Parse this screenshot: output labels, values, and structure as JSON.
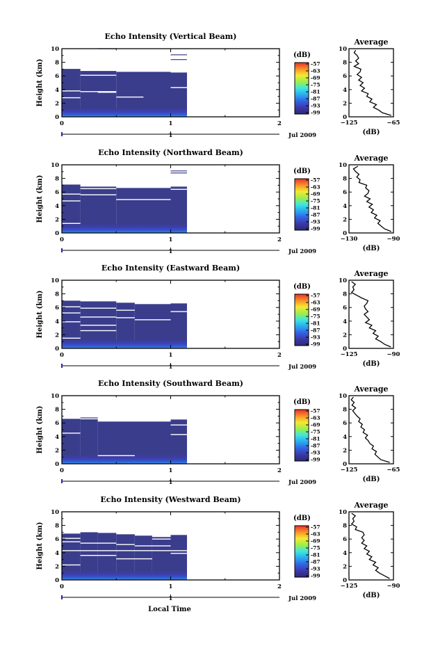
{
  "figure": {
    "xlabel": "Local Time",
    "date_label": "Jul 2009"
  },
  "chart_data": [
    {
      "type": "heatmap",
      "title": "Echo Intensity (Vertical Beam)",
      "ylabel": "Height (km)",
      "xlim": [
        0,
        2
      ],
      "ylim": [
        0,
        10
      ],
      "x_ticks": [
        0,
        1,
        2
      ],
      "y_ticks": [
        0,
        2,
        4,
        6,
        8,
        10
      ],
      "date_axis_ticks": [
        "1"
      ],
      "date_label": "Jul 2009",
      "data_extent_x": [
        0,
        1.15
      ],
      "column_breaks": [
        0,
        0.17,
        0.5,
        1.0,
        1.15
      ],
      "column_tops": [
        7.1,
        6.8,
        6.6,
        6.5
      ],
      "colorbar": {
        "label": "(dB)",
        "ticks": [
          -57,
          -63,
          -69,
          -75,
          -81,
          -87,
          -93,
          -99
        ]
      },
      "gaps": [
        {
          "x": [
            0,
            0.17
          ],
          "y": 7.1
        },
        {
          "x": [
            0.17,
            0.5
          ],
          "y": 6.8
        },
        {
          "x": [
            0,
            0.17
          ],
          "y": 3.8
        },
        {
          "x": [
            0.17,
            0.5
          ],
          "y": 3.7
        },
        {
          "x": [
            0.33,
            0.5
          ],
          "y": 3.6
        },
        {
          "x": [
            0.5,
            0.75
          ],
          "y": 2.9
        },
        {
          "x": [
            1.0,
            1.15
          ],
          "y": 4.3
        },
        {
          "x": [
            0,
            0.17
          ],
          "y": 2.8
        },
        {
          "x": [
            0.17,
            0.5
          ],
          "y": 6.1
        }
      ],
      "upper_echoes": [
        {
          "x": [
            1.0,
            1.15
          ],
          "y": 9.1
        },
        {
          "x": [
            1.0,
            1.15
          ],
          "y": 8.4
        },
        {
          "x": [
            0.33,
            0.5
          ],
          "y": 10.0
        }
      ],
      "profile": {
        "title": "Average",
        "xlabel": "(dB)",
        "xlim": [
          -125,
          -65
        ],
        "x_ticks": [
          -125,
          -65
        ],
        "ylim": [
          0,
          10
        ],
        "y_ticks": [
          0,
          2,
          4,
          6,
          8,
          10
        ],
        "h": [
          0.2,
          0.6,
          1.0,
          1.4,
          1.8,
          2.2,
          2.6,
          3.0,
          3.4,
          3.8,
          4.2,
          4.6,
          5.0,
          5.4,
          5.8,
          6.2,
          6.6,
          7.0,
          7.4,
          7.8,
          8.2,
          8.6,
          9.0,
          9.4,
          9.8
        ],
        "db": [
          -68,
          -80,
          -85,
          -92,
          -88,
          -97,
          -94,
          -101,
          -99,
          -108,
          -104,
          -110,
          -106,
          -112,
          -108,
          -114,
          -110,
          -109,
          -118,
          -112,
          -116,
          -112,
          -114,
          -118,
          -116
        ]
      }
    },
    {
      "type": "heatmap",
      "title": "Echo Intensity (Northward Beam)",
      "ylabel": "Height (km)",
      "xlim": [
        0,
        2
      ],
      "ylim": [
        0,
        10
      ],
      "x_ticks": [
        0,
        1,
        2
      ],
      "y_ticks": [
        0,
        2,
        4,
        6,
        8,
        10
      ],
      "date_axis_ticks": [
        "1"
      ],
      "date_label": "Jul 2009",
      "data_extent_x": [
        0,
        1.15
      ],
      "column_breaks": [
        0,
        0.17,
        0.5,
        1.0,
        1.15
      ],
      "column_tops": [
        7.1,
        6.8,
        6.6,
        6.8
      ],
      "colorbar": {
        "label": "(dB)",
        "ticks": [
          -57,
          -63,
          -69,
          -75,
          -81,
          -87,
          -93,
          -99
        ]
      },
      "gaps": [
        {
          "x": [
            0,
            0.17
          ],
          "y": 5.7
        },
        {
          "x": [
            0.17,
            0.5
          ],
          "y": 5.6
        },
        {
          "x": [
            0,
            0.17
          ],
          "y": 4.7
        },
        {
          "x": [
            0.5,
            1.0
          ],
          "y": 4.9
        },
        {
          "x": [
            0.17,
            0.5
          ],
          "y": 6.5
        },
        {
          "x": [
            1.0,
            1.15
          ],
          "y": 6.4
        },
        {
          "x": [
            0,
            0.17
          ],
          "y": 1.4
        }
      ],
      "upper_echoes": [
        {
          "x": [
            1.0,
            1.15
          ],
          "y": 9.1
        },
        {
          "x": [
            1.0,
            1.15
          ],
          "y": 8.8
        }
      ],
      "profile": {
        "title": "Average",
        "xlabel": "(dB)",
        "xlim": [
          -130,
          -90
        ],
        "x_ticks": [
          -130,
          -90
        ],
        "ylim": [
          0,
          10
        ],
        "y_ticks": [
          0,
          2,
          4,
          6,
          8,
          10
        ],
        "h": [
          0.2,
          0.6,
          1.0,
          1.4,
          1.8,
          2.2,
          2.6,
          3.0,
          3.4,
          3.8,
          4.2,
          4.6,
          5.0,
          5.4,
          5.8,
          6.2,
          6.6,
          7.0,
          7.4,
          7.8,
          8.2,
          8.6,
          9.0,
          9.4,
          9.8
        ],
        "db": [
          -92,
          -98,
          -101,
          -104,
          -102,
          -107,
          -105,
          -110,
          -108,
          -112,
          -109,
          -114,
          -111,
          -116,
          -113,
          -112,
          -115,
          -114,
          -121,
          -120,
          -123,
          -121,
          -124,
          -126,
          -122
        ]
      }
    },
    {
      "type": "heatmap",
      "title": "Echo Intensity (Eastward Beam)",
      "ylabel": "Height (km)",
      "xlim": [
        0,
        2
      ],
      "ylim": [
        0,
        10
      ],
      "x_ticks": [
        0,
        1,
        2
      ],
      "y_ticks": [
        0,
        2,
        4,
        6,
        8,
        10
      ],
      "date_axis_ticks": [
        "1"
      ],
      "date_label": "Jul 2009",
      "data_extent_x": [
        0,
        1.15
      ],
      "column_breaks": [
        0,
        0.17,
        0.5,
        0.67,
        1.0,
        1.15
      ],
      "column_tops": [
        7.0,
        6.9,
        6.7,
        6.5,
        6.6
      ],
      "colorbar": {
        "label": "(dB)",
        "ticks": [
          -57,
          -63,
          -69,
          -75,
          -81,
          -87,
          -93,
          -99
        ]
      },
      "gaps": [
        {
          "x": [
            0,
            0.17
          ],
          "y": 6.1
        },
        {
          "x": [
            0.17,
            0.5
          ],
          "y": 5.9
        },
        {
          "x": [
            0,
            0.17
          ],
          "y": 5.2
        },
        {
          "x": [
            0.5,
            0.67
          ],
          "y": 5.6
        },
        {
          "x": [
            0.17,
            0.5
          ],
          "y": 4.6
        },
        {
          "x": [
            0.67,
            1.0
          ],
          "y": 4.2
        },
        {
          "x": [
            0.17,
            0.5
          ],
          "y": 3.4
        },
        {
          "x": [
            0,
            0.17
          ],
          "y": 3.9
        },
        {
          "x": [
            0.17,
            0.5
          ],
          "y": 2.6
        },
        {
          "x": [
            0,
            0.17
          ],
          "y": 1.5
        },
        {
          "x": [
            1.0,
            1.15
          ],
          "y": 5.4
        },
        {
          "x": [
            0.5,
            0.67
          ],
          "y": 4.5
        }
      ],
      "upper_echoes": [],
      "profile": {
        "title": "Average",
        "xlabel": "(dB)",
        "xlim": [
          -125,
          -90
        ],
        "x_ticks": [
          -125,
          -90
        ],
        "ylim": [
          0,
          10
        ],
        "y_ticks": [
          0,
          2,
          4,
          6,
          8,
          10
        ],
        "h": [
          0.2,
          0.6,
          1.0,
          1.4,
          1.8,
          2.2,
          2.6,
          3.0,
          3.4,
          3.8,
          4.2,
          4.6,
          5.0,
          5.4,
          5.8,
          6.2,
          6.6,
          7.0,
          7.4,
          7.8,
          8.2,
          8.6,
          9.0,
          9.4,
          9.8
        ],
        "db": [
          -92,
          -97,
          -100,
          -104,
          -102,
          -106,
          -104,
          -109,
          -107,
          -112,
          -109,
          -111,
          -113,
          -110,
          -112,
          -113,
          -111,
          -110,
          -115,
          -119,
          -123,
          -121,
          -122,
          -120,
          -123
        ]
      }
    },
    {
      "type": "heatmap",
      "title": "Echo Intensity (Southward Beam)",
      "ylabel": "Height (km)",
      "xlim": [
        0,
        2
      ],
      "ylim": [
        0,
        10
      ],
      "x_ticks": [
        0,
        1,
        2
      ],
      "y_ticks": [
        0,
        2,
        4,
        6,
        8,
        10
      ],
      "date_axis_ticks": [
        "1"
      ],
      "date_label": "Jul 2009",
      "data_extent_x": [
        0,
        1.15
      ],
      "column_breaks": [
        0,
        0.17,
        0.33,
        1.0,
        1.15
      ],
      "column_tops": [
        6.6,
        6.8,
        6.2,
        6.5
      ],
      "colorbar": {
        "label": "(dB)",
        "ticks": [
          -57,
          -63,
          -69,
          -75,
          -81,
          -87,
          -93,
          -99
        ]
      },
      "gaps": [
        {
          "x": [
            0,
            0.17
          ],
          "y": 4.5
        },
        {
          "x": [
            1.0,
            1.15
          ],
          "y": 4.3
        },
        {
          "x": [
            0.33,
            0.67
          ],
          "y": 1.2
        },
        {
          "x": [
            1.0,
            1.15
          ],
          "y": 5.7
        },
        {
          "x": [
            0.17,
            0.33
          ],
          "y": 6.6
        }
      ],
      "upper_echoes": [],
      "profile": {
        "title": "Average",
        "xlabel": "(dB)",
        "xlim": [
          -125,
          -65
        ],
        "x_ticks": [
          -125,
          -65
        ],
        "ylim": [
          0,
          10
        ],
        "y_ticks": [
          0,
          2,
          4,
          6,
          8,
          10
        ],
        "h": [
          0.2,
          0.6,
          1.0,
          1.4,
          1.8,
          2.2,
          2.6,
          3.0,
          3.4,
          3.8,
          4.2,
          4.6,
          5.0,
          5.4,
          5.8,
          6.2,
          6.6,
          7.0,
          7.4,
          7.8,
          8.2,
          8.6,
          9.0,
          9.4,
          9.8
        ],
        "db": [
          -70,
          -82,
          -86,
          -90,
          -88,
          -94,
          -92,
          -97,
          -99,
          -103,
          -100,
          -106,
          -104,
          -109,
          -107,
          -112,
          -110,
          -114,
          -117,
          -120,
          -116,
          -121,
          -118,
          -122,
          -119
        ]
      }
    },
    {
      "type": "heatmap",
      "title": "Echo Intensity (Westward Beam)",
      "ylabel": "Height (km)",
      "xlim": [
        0,
        2
      ],
      "ylim": [
        0,
        10
      ],
      "x_ticks": [
        0,
        1,
        2
      ],
      "y_ticks": [
        0,
        2,
        4,
        6,
        8,
        10
      ],
      "date_axis_ticks": [
        "1"
      ],
      "date_label": "Jul 2009",
      "data_extent_x": [
        0,
        1.15
      ],
      "column_breaks": [
        0,
        0.17,
        0.33,
        0.5,
        0.67,
        0.83,
        1.0,
        1.15
      ],
      "column_tops": [
        6.8,
        7.0,
        6.9,
        6.7,
        6.5,
        6.3,
        6.6
      ],
      "colorbar": {
        "label": "(dB)",
        "ticks": [
          -57,
          -63,
          -69,
          -75,
          -81,
          -87,
          -93,
          -99
        ]
      },
      "gaps": [
        {
          "x": [
            0,
            0.17
          ],
          "y": 6.1
        },
        {
          "x": [
            0,
            0.17
          ],
          "y": 5.6
        },
        {
          "x": [
            0.17,
            0.5
          ],
          "y": 5.4
        },
        {
          "x": [
            0.5,
            0.67
          ],
          "y": 5.2
        },
        {
          "x": [
            0.67,
            1.0
          ],
          "y": 5.0
        },
        {
          "x": [
            0,
            1.15
          ],
          "y": 4.3
        },
        {
          "x": [
            0.17,
            0.5
          ],
          "y": 3.6
        },
        {
          "x": [
            0.5,
            0.83
          ],
          "y": 3.1
        },
        {
          "x": [
            0,
            0.17
          ],
          "y": 2.2
        },
        {
          "x": [
            0.83,
            1.0
          ],
          "y": 6.0
        },
        {
          "x": [
            1.0,
            1.15
          ],
          "y": 3.9
        }
      ],
      "upper_echoes": [],
      "profile": {
        "title": "Average",
        "xlabel": "(dB)",
        "xlim": [
          -125,
          -90
        ],
        "x_ticks": [
          -125,
          -90
        ],
        "ylim": [
          0,
          10
        ],
        "y_ticks": [
          0,
          2,
          4,
          6,
          8,
          10
        ],
        "h": [
          0.2,
          0.6,
          1.0,
          1.4,
          1.8,
          2.2,
          2.6,
          3.0,
          3.4,
          3.8,
          4.2,
          4.6,
          5.0,
          5.4,
          5.8,
          6.2,
          6.6,
          7.0,
          7.4,
          7.8,
          8.2,
          8.6,
          9.0,
          9.4,
          9.8
        ],
        "db": [
          -93,
          -97,
          -101,
          -104,
          -102,
          -106,
          -104,
          -109,
          -107,
          -111,
          -109,
          -113,
          -111,
          -115,
          -113,
          -115,
          -113,
          -114,
          -120,
          -119,
          -123,
          -121,
          -122,
          -120,
          -123
        ]
      }
    }
  ]
}
